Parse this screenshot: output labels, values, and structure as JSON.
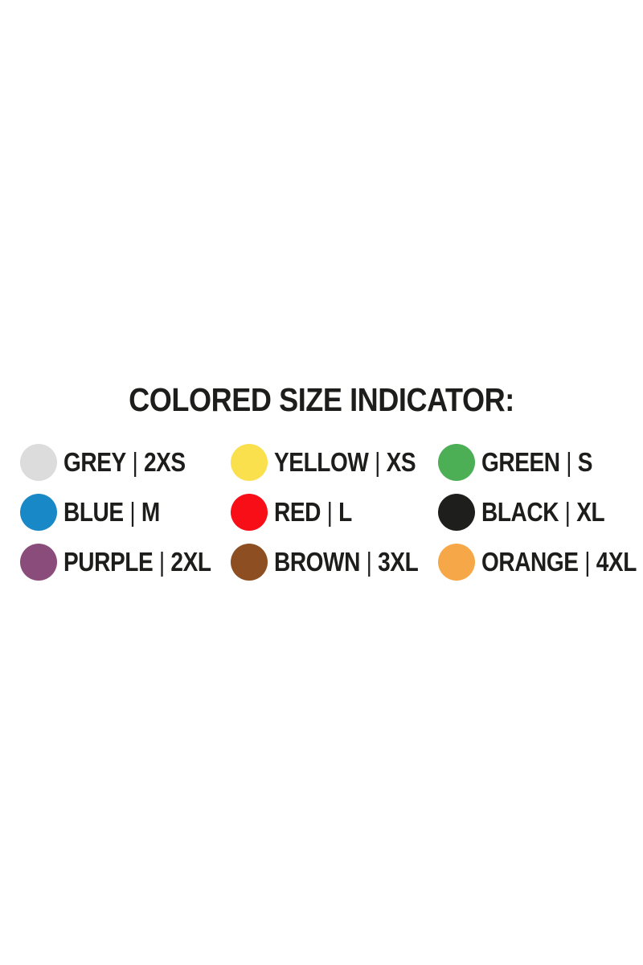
{
  "title": "COLORED SIZE INDICATOR:",
  "legend": {
    "separator": "|",
    "text_color": "#1d1d1b",
    "items": [
      {
        "color_name": "GREY",
        "size": "2XS",
        "hex": "#dcdcdc"
      },
      {
        "color_name": "YELLOW",
        "size": "XS",
        "hex": "#fbe04e"
      },
      {
        "color_name": "GREEN",
        "size": "S",
        "hex": "#4caf55"
      },
      {
        "color_name": "BLUE",
        "size": "M",
        "hex": "#1888c6"
      },
      {
        "color_name": "RED",
        "size": "L",
        "hex": "#f80e17"
      },
      {
        "color_name": "BLACK",
        "size": "XL",
        "hex": "#1e1e1c"
      },
      {
        "color_name": "PURPLE",
        "size": "2XL",
        "hex": "#8a4d7b"
      },
      {
        "color_name": "BROWN",
        "size": "3XL",
        "hex": "#8d4f21"
      },
      {
        "color_name": "ORANGE",
        "size": "4XL",
        "hex": "#f6a848"
      }
    ]
  }
}
